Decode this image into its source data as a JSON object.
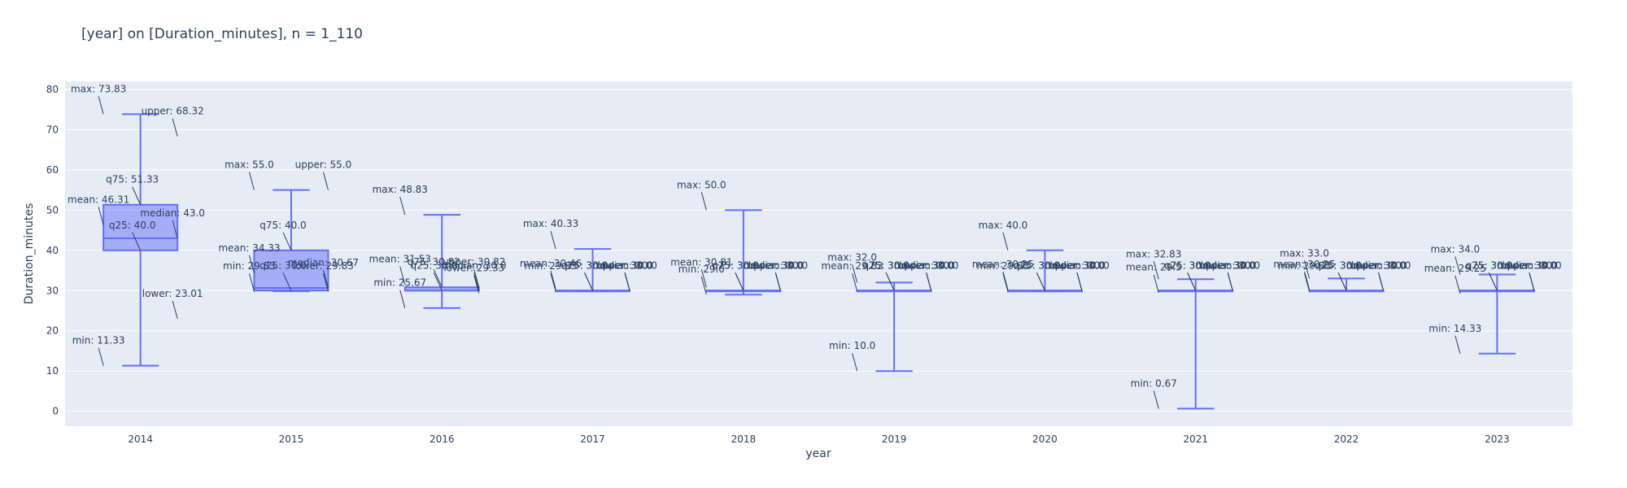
{
  "chart_data": {
    "type": "box",
    "title": "[year] on [Duration_minutes], n = 1_110",
    "xlabel": "year",
    "ylabel": "Duration_minutes",
    "ylim": [
      -3.7,
      82
    ],
    "yticks": [
      0,
      10,
      20,
      30,
      40,
      50,
      60,
      70,
      80
    ],
    "grid": true,
    "colors": {
      "box_line": "#636efa",
      "box_fill": "rgba(99,110,250,0.5)",
      "plot_bg": "#e5ecf6",
      "grid": "#ffffff",
      "text": "#2a3f5f"
    },
    "categories": [
      "2014",
      "2015",
      "2016",
      "2017",
      "2018",
      "2019",
      "2020",
      "2021",
      "2022",
      "2023"
    ],
    "boxes": [
      {
        "min": 11.33,
        "q25": 40.0,
        "median": 43.0,
        "q75": 51.33,
        "max": 73.83,
        "mean": 46.31,
        "upper": 68.32,
        "lower": 23.01,
        "labels": {
          "max": "max: 73.83",
          "upper": "upper: 68.32",
          "q75": "q75: 51.33",
          "mean": "mean: 46.31",
          "median": "median: 43.0",
          "q25": "q25: 40.0",
          "lower": "lower: 23.01",
          "min": "min: 11.33"
        }
      },
      {
        "min": 29.83,
        "q25": 30.0,
        "median": 30.67,
        "q75": 40.0,
        "max": 55.0,
        "mean": 34.33,
        "upper": 55.0,
        "lower": 29.83,
        "labels": {
          "max": "max: 55.0",
          "upper": "upper: 55.0",
          "q75": "q75: 40.0",
          "mean": "mean: 34.33",
          "median": "median: 30.67",
          "q25": "q25: 30.0",
          "lower": "lower: 29.83",
          "min": "min: 29.83"
        }
      },
      {
        "min": 25.67,
        "q25": 30.0,
        "median": 30.0,
        "q75": 30.82,
        "max": 48.83,
        "mean": 31.53,
        "upper": 30.82,
        "lower": 29.33,
        "labels": {
          "max": "max: 48.83",
          "upper": "upper: 30.82",
          "q75": "q75: 30.82",
          "mean": "mean: 31.53",
          "median": "median: 30.0",
          "q25": "q25: 30.0",
          "lower": "lower: 29.33",
          "min": "min: 25.67"
        }
      },
      {
        "min": 29.83,
        "q25": 30.0,
        "median": 30.0,
        "q75": 30.0,
        "max": 40.33,
        "mean": 30.46,
        "upper": 30.0,
        "lower": 30.0,
        "labels": {
          "max": "max: 40.33",
          "upper": "upper: 30.0",
          "q75": "q75: 30.0",
          "mean": "mean: 30.46",
          "median": "median: 30.0",
          "q25": "q25: 30.0",
          "lower": "lower: 30.0",
          "min": "min: 29.83"
        }
      },
      {
        "min": 29.0,
        "q25": 30.0,
        "median": 30.0,
        "q75": 30.0,
        "max": 50.0,
        "mean": 30.81,
        "upper": 30.0,
        "lower": 30.0,
        "labels": {
          "max": "max: 50.0",
          "upper": "upper: 30.0",
          "q75": "q75: 30.0",
          "mean": "mean: 30.81",
          "median": "median: 30.0",
          "q25": "q25: 30.0",
          "lower": "lower: 30.0",
          "min": "min: 29.0"
        }
      },
      {
        "min": 10.0,
        "q25": 30.0,
        "median": 30.0,
        "q75": 30.0,
        "max": 32.0,
        "mean": 29.83,
        "upper": 30.0,
        "lower": 30.0,
        "labels": {
          "max": "max: 32.0",
          "upper": "upper: 30.0",
          "q75": "q75: 30.0",
          "mean": "mean: 29.83",
          "median": "median: 30.0",
          "q25": "q25: 30.0",
          "lower": "lower: 30.0",
          "min": "min: 10.0"
        }
      },
      {
        "min": 29.83,
        "q25": 30.0,
        "median": 30.0,
        "q75": 30.0,
        "max": 40.0,
        "mean": 30.25,
        "upper": 30.0,
        "lower": 30.0,
        "labels": {
          "max": "max: 40.0",
          "upper": "upper: 30.0",
          "q75": "q75: 30.0",
          "mean": "mean: 30.25",
          "median": "median: 30.0",
          "q25": "q25: 30.0",
          "lower": "lower: 30.0",
          "min": "min: 29.83"
        }
      },
      {
        "min": 0.67,
        "q25": 30.0,
        "median": 30.0,
        "q75": 30.0,
        "max": 32.83,
        "mean": 29.5,
        "upper": 30.0,
        "lower": 30.0,
        "labels": {
          "max": "max: 32.83",
          "upper": "upper: 30.0",
          "q75": "q75: 30.0",
          "mean": "mean: 29.5",
          "median": "median: 30.0",
          "q25": "q25: 30.0",
          "lower": "lower: 30.0",
          "min": "min: 0.67"
        }
      },
      {
        "min": 29.83,
        "q25": 30.0,
        "median": 30.0,
        "q75": 30.0,
        "max": 33.0,
        "mean": 30.25,
        "upper": 30.0,
        "lower": 30.0,
        "labels": {
          "max": "max: 33.0",
          "upper": "upper: 30.0",
          "q75": "q75: 30.0",
          "mean": "mean: 30.25",
          "median": "median: 30.0",
          "q25": "q25: 30.0",
          "lower": "lower: 30.0",
          "min": "min: 29.83"
        }
      },
      {
        "min": 14.33,
        "q25": 30.0,
        "median": 30.0,
        "q75": 30.0,
        "max": 34.0,
        "mean": 29.25,
        "upper": 30.0,
        "lower": 30.0,
        "labels": {
          "max": "max: 34.0",
          "upper": "upper: 30.0",
          "q75": "q75: 30.0",
          "mean": "mean: 29.25",
          "median": "median: 30.0",
          "q25": "q25: 30.0",
          "lower": "lower: 30.0",
          "min": "min: 14.33"
        }
      }
    ]
  }
}
